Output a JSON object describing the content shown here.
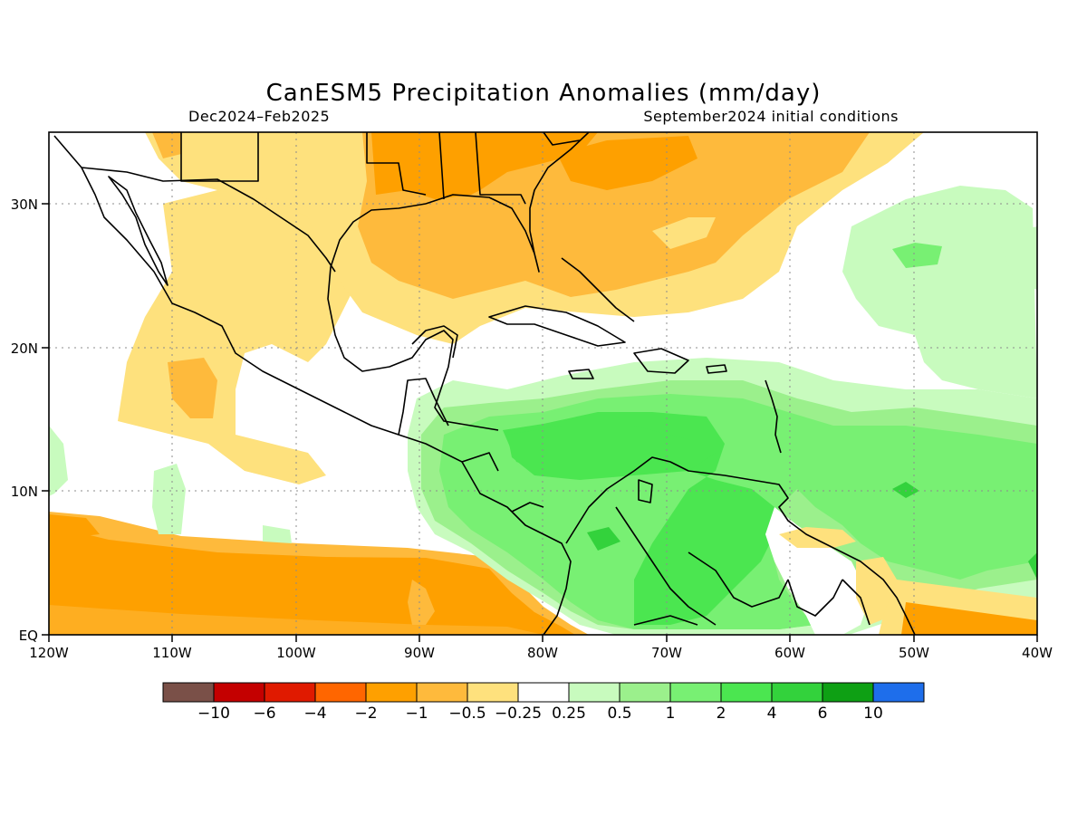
{
  "title": "CanESM5 Precipitation Anomalies (mm/day)",
  "period": "Dec2024–Feb2025",
  "initial_conditions": "September2024 initial conditions",
  "axes": {
    "lon_ticks": [
      "120W",
      "110W",
      "100W",
      "90W",
      "80W",
      "70W",
      "60W",
      "50W",
      "40W"
    ],
    "lat_ticks": [
      "EQ",
      "10N",
      "20N",
      "30N"
    ],
    "lon_range": [
      -120,
      -40
    ],
    "lat_range": [
      0,
      35
    ]
  },
  "colorbar": {
    "colors": [
      "#7a5048",
      "#c40000",
      "#e01a00",
      "#ff6600",
      "#fea000",
      "#feba3c",
      "#fee17d",
      "#ffffff",
      "#c8fbbe",
      "#9bf08c",
      "#78f073",
      "#4be650",
      "#33d23c",
      "#0ea014",
      "#1e6eeb"
    ],
    "labels": [
      "−10",
      "−6",
      "−4",
      "−2",
      "−1",
      "−0.5",
      "−0.25",
      "0.25",
      "0.5",
      "1",
      "2",
      "4",
      "6",
      "10"
    ]
  },
  "chart_data": {
    "type": "heatmap",
    "title": "CanESM5 Precipitation Anomalies (mm/day)",
    "variable": "Precipitation anomaly",
    "units": "mm/day",
    "period": "Dec2024–Feb2025",
    "lon_range": [
      -120,
      -40
    ],
    "lat_range": [
      0,
      35
    ],
    "levels": [
      -10,
      -6,
      -4,
      -2,
      -1,
      -0.5,
      -0.25,
      0.25,
      0.5,
      1,
      2,
      4,
      6,
      10
    ],
    "regions": [
      {
        "name": "Gulf of Mexico / southeastern US",
        "anomaly_range": [
          -1,
          -0.5
        ]
      },
      {
        "name": "Florida / subtropical western Atlantic",
        "anomaly_range": [
          -1,
          -0.25
        ]
      },
      {
        "name": "Mexico / eastern Pacific near 10-25N",
        "anomaly_range": [
          -0.5,
          -0.25
        ]
      },
      {
        "name": "Eastern tropical Pacific near equator",
        "anomaly_range": [
          -2,
          -1
        ]
      },
      {
        "name": "Caribbean Sea",
        "anomaly_range": [
          1,
          4
        ]
      },
      {
        "name": "Northern South America",
        "anomaly_range": [
          1,
          4
        ]
      },
      {
        "name": "Tropical Atlantic 5-15N",
        "anomaly_range": [
          1,
          2
        ]
      },
      {
        "name": "Subtropical Atlantic 20-30N",
        "anomaly_range": [
          0.25,
          1
        ]
      },
      {
        "name": "Equatorial Atlantic near 50W",
        "anomaly_range": [
          -2,
          -0.25
        ]
      }
    ]
  }
}
